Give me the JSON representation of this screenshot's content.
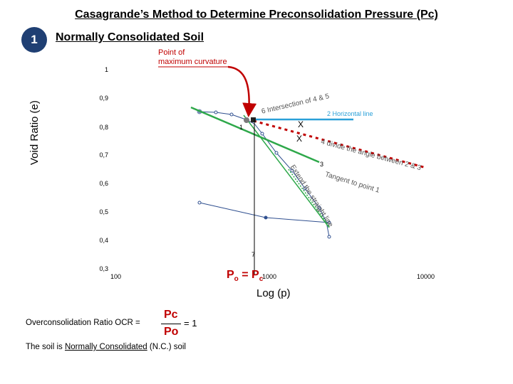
{
  "title": "Casagrande’s Method to Determine Preconsolidation Pressure (Pc)",
  "step_number": "1",
  "section_heading": "Normally Consolidated Soil",
  "curvature_label": [
    "Point of",
    "maximum curvature"
  ],
  "axes": {
    "y_title": "Void Ratio (e)",
    "x_title": "Log (p)",
    "y_ticks": [
      "1",
      "0,9",
      "0,8",
      "0,7",
      "0,6",
      "0,5",
      "0,4",
      "0,3"
    ],
    "x_ticks": [
      "100",
      "1000",
      "10000"
    ]
  },
  "annotations": {
    "step1": "1",
    "step2": "2  Horizontal line",
    "step3": "3",
    "tangent": "Tangent to point 1",
    "step4": "4  divide the angle between 2 & 3",
    "step6": "6  Intersection of 4 & 5",
    "step7": "7",
    "extend": "Extend the straight line",
    "x_mark_top": "X",
    "x_mark_bottom": "X"
  },
  "pc_equation": {
    "p": "P",
    "p_sub": "o",
    "eq": " = ",
    "pc": "P",
    "pc_sub": "c"
  },
  "formula": {
    "label": "Overconsolidation Ratio  OCR  =",
    "numerator": "Pc",
    "denominator": "Po",
    "result": "= 1"
  },
  "conclusion": {
    "prefix": "The soil is ",
    "blank": "Normally Consolidated",
    "suffix": " (N.C.) soil"
  },
  "colors": {
    "badge": "#1f3f73",
    "curve": "#2f4f8f",
    "tangent": "#2ea84a",
    "horizontal": "#2aa0d8",
    "bisector": "#c00000",
    "highlight": "#c00000"
  }
}
